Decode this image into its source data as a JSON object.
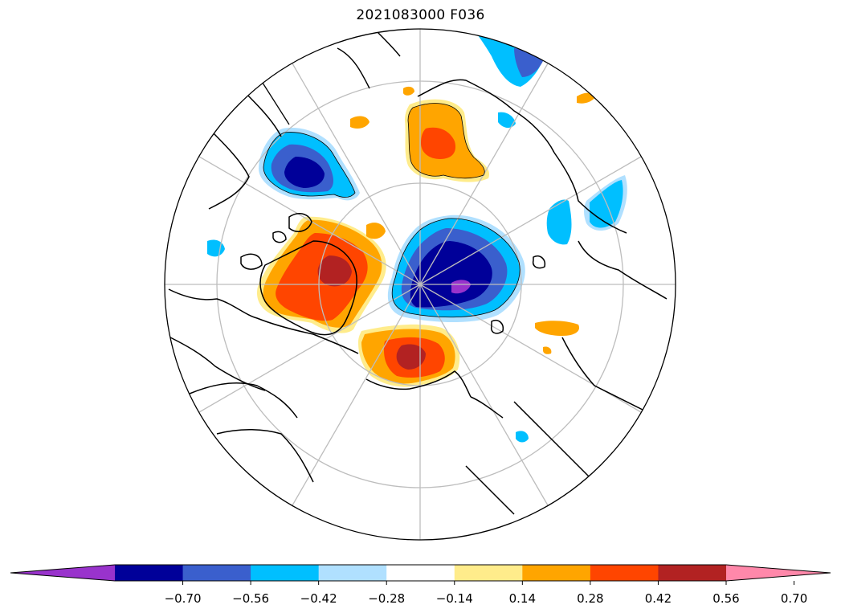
{
  "title": "2021083000 F036",
  "projection": "north-polar-stereographic",
  "colors": {
    "coast": "#000000",
    "grid": "#bdbdbd",
    "n070_extend": "#9933cc",
    "n070": "#000099",
    "n056": "#3a5fcd",
    "n042": "#00bfff",
    "n028": "#b0e0ff",
    "zero": "#ffffff",
    "p014": "#ffec8b",
    "p028": "#ffa500",
    "p042": "#ff4500",
    "p056": "#b22222",
    "p070_extend": "#ff88aa"
  },
  "colorbar": {
    "extend": "both",
    "bins": [
      {
        "color": "#9933cc"
      },
      {
        "color": "#000099"
      },
      {
        "color": "#3a5fcd"
      },
      {
        "color": "#00bfff"
      },
      {
        "color": "#b0e0ff"
      },
      {
        "color": "#ffffff"
      },
      {
        "color": "#ffec8b"
      },
      {
        "color": "#ffa500"
      },
      {
        "color": "#ff4500"
      },
      {
        "color": "#b22222"
      },
      {
        "color": "#ff88aa"
      }
    ],
    "ticks": [
      "−0.70",
      "−0.56",
      "−0.42",
      "−0.28",
      "−0.14",
      "0.14",
      "0.28",
      "0.42",
      "0.56",
      "0.70"
    ]
  }
}
